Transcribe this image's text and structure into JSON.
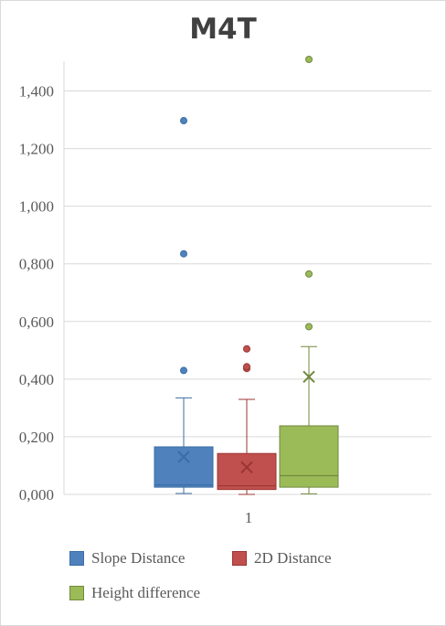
{
  "chart_data": {
    "type": "box",
    "title": "M4T",
    "categories": [
      "1"
    ],
    "ylim": [
      0,
      1.5
    ],
    "yticks": [
      0,
      0.2,
      0.4,
      0.6,
      0.8,
      1.0,
      1.2,
      1.4
    ],
    "ytick_labels": [
      "0,000",
      "0,200",
      "0,400",
      "0,600",
      "0,800",
      "1,000",
      "1,200",
      "1,400"
    ],
    "grid": true,
    "legend_position": "bottom",
    "series": [
      {
        "name": "Slope Distance",
        "color": "#4f81bd",
        "border": "#3a6ea5",
        "min": 0.003,
        "q1": 0.025,
        "median": 0.033,
        "q3": 0.165,
        "max": 0.335,
        "mean": 0.13,
        "outliers": [
          0.43,
          0.835,
          1.297
        ]
      },
      {
        "name": "2D Distance",
        "color": "#c0504d",
        "border": "#9b3533",
        "min": 0.0,
        "q1": 0.017,
        "median": 0.03,
        "q3": 0.142,
        "max": 0.33,
        "mean": 0.094,
        "outliers": [
          0.437,
          0.443,
          0.505
        ]
      },
      {
        "name": "Height difference",
        "color": "#9bbb59",
        "border": "#71893e",
        "min": 0.002,
        "q1": 0.025,
        "median": 0.065,
        "q3": 0.238,
        "max": 0.513,
        "mean": 0.408,
        "outliers": [
          0.582,
          0.765,
          1.51
        ]
      }
    ]
  }
}
